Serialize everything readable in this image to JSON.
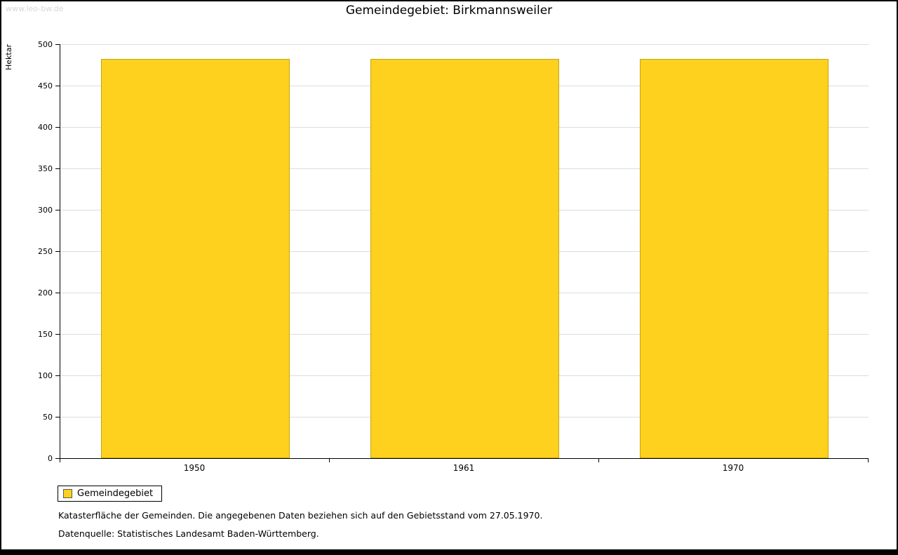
{
  "watermark": "www.leo-bw.de",
  "title": "Gemeindegebiet: Birkmannsweiler",
  "chart_data": {
    "type": "bar",
    "categories": [
      "1950",
      "1961",
      "1970"
    ],
    "series": [
      {
        "name": "Gemeindegebiet",
        "values": [
          482,
          482,
          482
        ]
      }
    ],
    "title": "Gemeindegebiet: Birkmannsweiler",
    "xlabel": "",
    "ylabel": "Hektar",
    "ylim": [
      0,
      500
    ],
    "ytick_step": 50,
    "grid": true,
    "bar_color": "#fdd11e",
    "bar_border_color": "#c8a40a",
    "legend_position": "bottom-left"
  },
  "legend": {
    "items": [
      {
        "label": "Gemeindegebiet",
        "color": "#fdd11e"
      }
    ]
  },
  "footnotes": [
    "Katasterfläche der Gemeinden. Die angegebenen Daten beziehen sich auf den Gebietsstand vom 27.05.1970.",
    "Datenquelle: Statistisches Landesamt Baden-Württemberg."
  ]
}
